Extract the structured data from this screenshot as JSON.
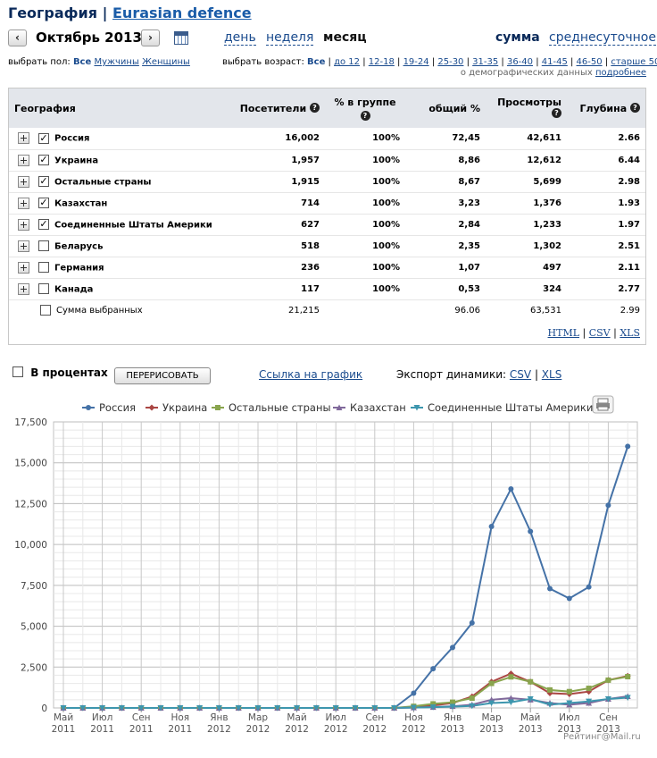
{
  "header": {
    "title_prefix": "География |",
    "site_name": "Eurasian defence"
  },
  "nav": {
    "prev_arrow": "‹",
    "next_arrow": "›",
    "month": "Октябрь 2013",
    "periods": [
      "день",
      "неделя",
      "месяц"
    ],
    "modes": [
      "сумма",
      "среднесуточное"
    ]
  },
  "filters": {
    "gender_label": "выбрать пол:",
    "gender_all": "Все",
    "gender_options": [
      "Мужчины",
      "Женщины"
    ],
    "age_label": "выбрать возраст:",
    "age_all": "Все",
    "age_options": [
      "до 12",
      "12-18",
      "19-24",
      "25-30",
      "31-35",
      "36-40",
      "41-45",
      "46-50",
      "старше 50"
    ],
    "demo_note": "о демографических данных",
    "demo_link": "подробнее"
  },
  "table": {
    "columns": [
      "География",
      "Посетители",
      "% в группе",
      "общий %",
      "Просмотры",
      "Глубина"
    ],
    "rows": [
      {
        "name": "Россия",
        "checked": true,
        "visitors": "16,002",
        "group_pct": "100%",
        "total_pct": "72,45",
        "views": "42,611",
        "depth": "2.66"
      },
      {
        "name": "Украина",
        "checked": true,
        "visitors": "1,957",
        "group_pct": "100%",
        "total_pct": "8,86",
        "views": "12,612",
        "depth": "6.44"
      },
      {
        "name": "Остальные страны",
        "checked": true,
        "visitors": "1,915",
        "group_pct": "100%",
        "total_pct": "8,67",
        "views": "5,699",
        "depth": "2.98"
      },
      {
        "name": "Казахстан",
        "checked": true,
        "visitors": "714",
        "group_pct": "100%",
        "total_pct": "3,23",
        "views": "1,376",
        "depth": "1.93"
      },
      {
        "name": "Соединенные Штаты Америки",
        "checked": true,
        "visitors": "627",
        "group_pct": "100%",
        "total_pct": "2,84",
        "views": "1,233",
        "depth": "1.97"
      },
      {
        "name": "Беларусь",
        "checked": false,
        "visitors": "518",
        "group_pct": "100%",
        "total_pct": "2,35",
        "views": "1,302",
        "depth": "2.51"
      },
      {
        "name": "Германия",
        "checked": false,
        "visitors": "236",
        "group_pct": "100%",
        "total_pct": "1,07",
        "views": "497",
        "depth": "2.11"
      },
      {
        "name": "Канада",
        "checked": false,
        "visitors": "117",
        "group_pct": "100%",
        "total_pct": "0,53",
        "views": "324",
        "depth": "2.77"
      }
    ],
    "sum_row": {
      "label": "Сумма выбранных",
      "visitors": "21,215",
      "total_pct": "96.06",
      "views": "63,531",
      "depth": "2.99"
    },
    "exports": [
      "HTML",
      "CSV",
      "XLS"
    ]
  },
  "controls": {
    "percent_label": "В процентах",
    "redraw_button": "ПЕРЕРИСОВАТЬ",
    "chart_link": "Ссылка на график",
    "export_label": "Экспорт динамики:",
    "export_csv": "CSV",
    "export_xls": "XLS"
  },
  "watermark": "Рейтинг@Mail.ru",
  "chart_data": {
    "type": "line",
    "title": "",
    "xlabel": "",
    "ylabel": "",
    "ylim": [
      0,
      17500
    ],
    "yticks": [
      0,
      2500,
      5000,
      7500,
      10000,
      12500,
      15000,
      17500
    ],
    "ytick_labels": [
      "0",
      "2,500",
      "5,000",
      "7,500",
      "10,000",
      "12,500",
      "15,000",
      "17,500"
    ],
    "x": [
      "2011-05",
      "2011-06",
      "2011-07",
      "2011-08",
      "2011-09",
      "2011-10",
      "2011-11",
      "2011-12",
      "2012-01",
      "2012-02",
      "2012-03",
      "2012-04",
      "2012-05",
      "2012-06",
      "2012-07",
      "2012-08",
      "2012-09",
      "2012-10",
      "2012-11",
      "2012-12",
      "2013-01",
      "2013-02",
      "2013-03",
      "2013-04",
      "2013-05",
      "2013-06",
      "2013-07",
      "2013-08",
      "2013-09",
      "2013-10"
    ],
    "xtick_labels": [
      [
        "Май",
        "2011"
      ],
      [
        "Июл",
        "2011"
      ],
      [
        "Сен",
        "2011"
      ],
      [
        "Ноя",
        "2011"
      ],
      [
        "Янв",
        "2012"
      ],
      [
        "Мар",
        "2012"
      ],
      [
        "Май",
        "2012"
      ],
      [
        "Июл",
        "2012"
      ],
      [
        "Сен",
        "2012"
      ],
      [
        "Ноя",
        "2012"
      ],
      [
        "Янв",
        "2013"
      ],
      [
        "Мар",
        "2013"
      ],
      [
        "Май",
        "2013"
      ],
      [
        "Июл",
        "2013"
      ],
      [
        "Сен",
        "2013"
      ]
    ],
    "grid": true,
    "legend_position": "top",
    "series": [
      {
        "name": "Россия",
        "color": "#4572a7",
        "marker": "circle",
        "values": [
          0,
          0,
          0,
          0,
          0,
          0,
          0,
          0,
          0,
          0,
          0,
          0,
          0,
          0,
          0,
          0,
          0,
          0,
          900,
          2400,
          3700,
          5200,
          11100,
          13400,
          10800,
          7300,
          6700,
          7400,
          12400,
          16002
        ]
      },
      {
        "name": "Украина",
        "color": "#aa4643",
        "marker": "diamond",
        "values": [
          0,
          0,
          0,
          0,
          0,
          0,
          0,
          0,
          0,
          0,
          0,
          0,
          0,
          0,
          0,
          0,
          0,
          0,
          50,
          150,
          300,
          700,
          1600,
          2100,
          1600,
          900,
          850,
          1000,
          1700,
          1957
        ]
      },
      {
        "name": "Остальные страны",
        "color": "#89a54e",
        "marker": "square",
        "values": [
          0,
          0,
          0,
          0,
          0,
          0,
          0,
          0,
          0,
          0,
          0,
          0,
          0,
          0,
          0,
          0,
          0,
          0,
          100,
          250,
          350,
          600,
          1500,
          1900,
          1600,
          1100,
          1000,
          1200,
          1700,
          1915
        ]
      },
      {
        "name": "Казахстан",
        "color": "#80699b",
        "marker": "triangle",
        "values": [
          0,
          0,
          0,
          0,
          0,
          0,
          0,
          0,
          0,
          0,
          0,
          0,
          0,
          0,
          0,
          0,
          0,
          0,
          20,
          50,
          100,
          200,
          500,
          600,
          500,
          300,
          200,
          300,
          550,
          714
        ]
      },
      {
        "name": "Соединенные Штаты Америки",
        "color": "#3d96ae",
        "marker": "triangle-down",
        "values": [
          0,
          0,
          0,
          0,
          0,
          0,
          0,
          0,
          0,
          0,
          0,
          0,
          0,
          0,
          0,
          0,
          0,
          0,
          20,
          50,
          80,
          120,
          300,
          350,
          550,
          200,
          300,
          400,
          550,
          627
        ]
      }
    ]
  }
}
